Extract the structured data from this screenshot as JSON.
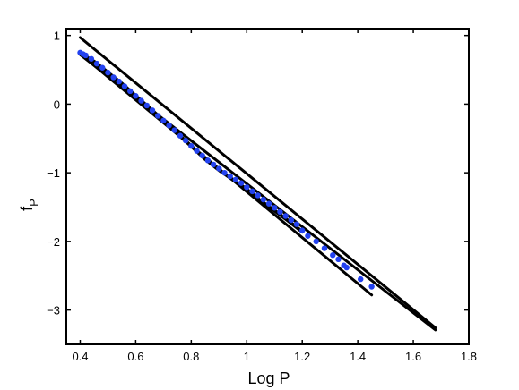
{
  "chart_data": {
    "type": "scatter",
    "title": "",
    "xlabel": "Log P",
    "ylabel": "f",
    "ylabel_subscript": "P",
    "xlim": [
      0.35,
      1.8
    ],
    "ylim": [
      -3.5,
      1.1
    ],
    "xticks": [
      0.4,
      0.6,
      0.8,
      1,
      1.2,
      1.4,
      1.6,
      1.8
    ],
    "yticks": [
      1,
      0,
      -1,
      -2,
      -3
    ],
    "grid": false,
    "legend": "none",
    "colors": {
      "points": "#2342f0",
      "lines": "#000000",
      "frame": "#000000"
    },
    "lines": [
      {
        "x": [
          0.4,
          1.68
        ],
        "y": [
          0.97,
          -3.26
        ]
      },
      {
        "x": [
          0.4,
          1.68
        ],
        "y": [
          0.72,
          -3.29
        ]
      },
      {
        "x": [
          0.4,
          1.45
        ],
        "y": [
          0.73,
          -2.78
        ]
      }
    ],
    "curve": {
      "x": [
        0.4,
        0.45,
        0.5,
        0.55,
        0.6,
        0.65,
        0.7,
        0.75,
        0.8,
        0.85,
        0.9,
        0.95,
        1.0,
        1.05,
        1.1,
        1.15,
        1.2
      ],
      "y": [
        0.74,
        0.62,
        0.46,
        0.3,
        0.12,
        -0.06,
        -0.24,
        -0.43,
        -0.61,
        -0.8,
        -0.96,
        -1.1,
        -1.24,
        -1.41,
        -1.55,
        -1.7,
        -1.86
      ]
    },
    "points": {
      "x": [
        0.4,
        0.41,
        0.42,
        0.44,
        0.46,
        0.48,
        0.5,
        0.52,
        0.54,
        0.56,
        0.58,
        0.6,
        0.62,
        0.64,
        0.66,
        0.68,
        0.7,
        0.72,
        0.74,
        0.76,
        0.78,
        0.8,
        0.82,
        0.84,
        0.86,
        0.88,
        0.9,
        0.92,
        0.94,
        0.96,
        0.98,
        1.0,
        1.02,
        1.04,
        1.06,
        1.08,
        1.1,
        1.12,
        1.14,
        1.16,
        1.18,
        1.2,
        1.22,
        1.25,
        1.28,
        1.31,
        1.33,
        1.35,
        1.36,
        1.41,
        1.45
      ],
      "y": [
        0.75,
        0.73,
        0.71,
        0.66,
        0.59,
        0.53,
        0.46,
        0.39,
        0.33,
        0.26,
        0.19,
        0.12,
        0.05,
        -0.02,
        -0.09,
        -0.17,
        -0.24,
        -0.31,
        -0.38,
        -0.46,
        -0.53,
        -0.61,
        -0.68,
        -0.75,
        -0.82,
        -0.88,
        -0.94,
        -1.0,
        -1.05,
        -1.1,
        -1.15,
        -1.21,
        -1.27,
        -1.33,
        -1.39,
        -1.45,
        -1.51,
        -1.57,
        -1.63,
        -1.69,
        -1.75,
        -1.84,
        -1.92,
        -2.0,
        -2.1,
        -2.2,
        -2.26,
        -2.35,
        -2.38,
        -2.55,
        -2.66
      ]
    }
  }
}
